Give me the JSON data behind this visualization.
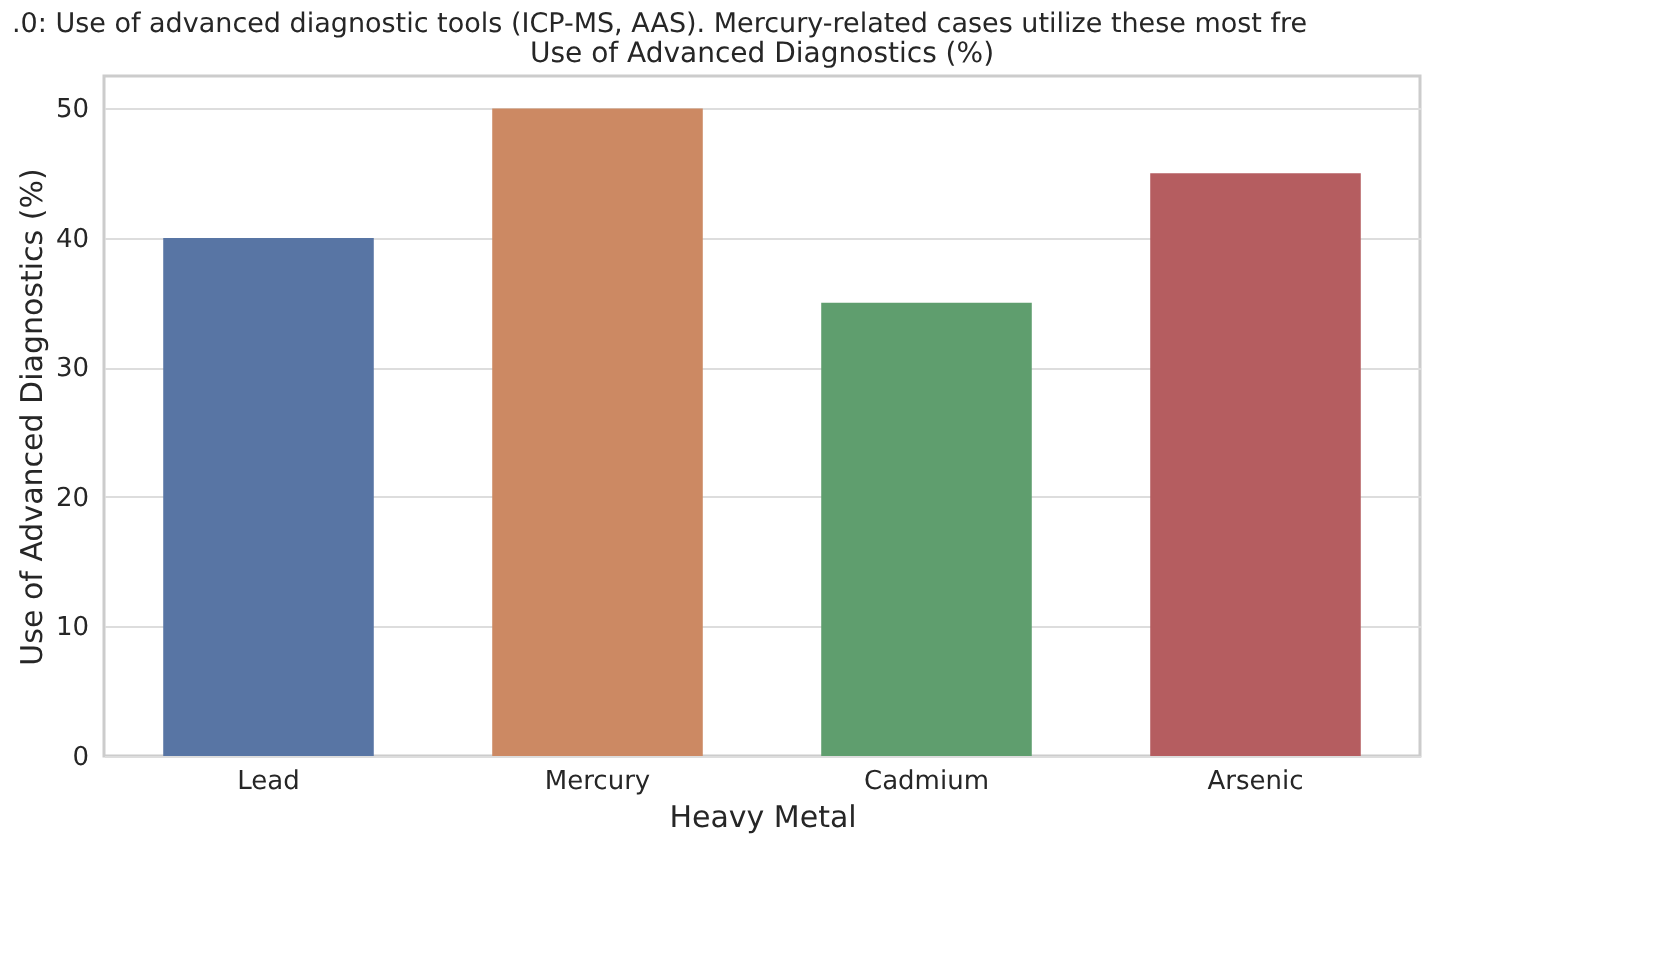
{
  "chart_data": {
    "type": "bar",
    "title": "Use of Advanced Diagnostics (%)",
    "annotations": [
      ".0: Use of advanced diagnostic tools (ICP-MS, AAS). Mercury-related cases utilize these most fre"
    ],
    "xlabel": "Heavy Metal",
    "ylabel": "Use of Advanced Diagnostics (%)",
    "categories": [
      "Lead",
      "Mercury",
      "Cadmium",
      "Arsenic"
    ],
    "values": [
      40,
      50,
      35,
      45
    ],
    "colors": [
      "#5875a4",
      "#cc8963",
      "#5f9e6e",
      "#b55d60"
    ],
    "ylim": [
      0,
      52.5
    ],
    "yticks": [
      0,
      10,
      20,
      30,
      40,
      50
    ],
    "grid": "y"
  }
}
